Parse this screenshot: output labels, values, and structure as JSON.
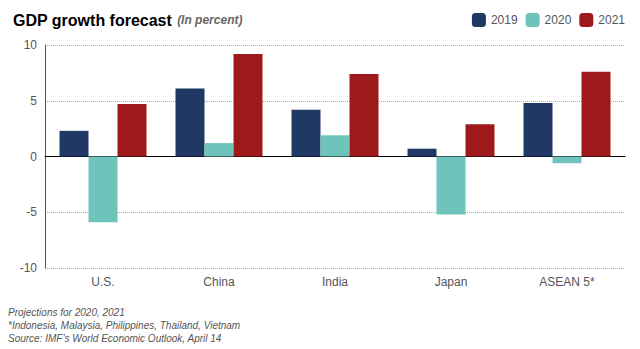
{
  "chart_data": {
    "type": "bar",
    "title": "GDP growth forecast",
    "subtitle": "(In percent)",
    "categories": [
      "U.S.",
      "China",
      "India",
      "Japan",
      "ASEAN 5*"
    ],
    "series": [
      {
        "name": "2019",
        "color": "#1f3864",
        "values": [
          2.3,
          6.1,
          4.2,
          0.7,
          4.8
        ]
      },
      {
        "name": "2020",
        "color": "#6ec4bb",
        "values": [
          -5.9,
          1.2,
          1.9,
          -5.2,
          -0.6
        ]
      },
      {
        "name": "2021",
        "color": "#9e1a1a",
        "values": [
          4.7,
          9.2,
          7.4,
          2.9,
          7.6
        ]
      }
    ],
    "ylim": [
      -10,
      10
    ],
    "yticks": [
      -10,
      -5,
      0,
      5,
      10
    ],
    "grid": true,
    "legend": "upper right",
    "annotations": [
      "Projections for 2020, 2021",
      "*Indonesia, Malaysia, Philippines, Thailand, Vietnam",
      "Source: IMF’s World Economic Outlook, April 14"
    ]
  }
}
